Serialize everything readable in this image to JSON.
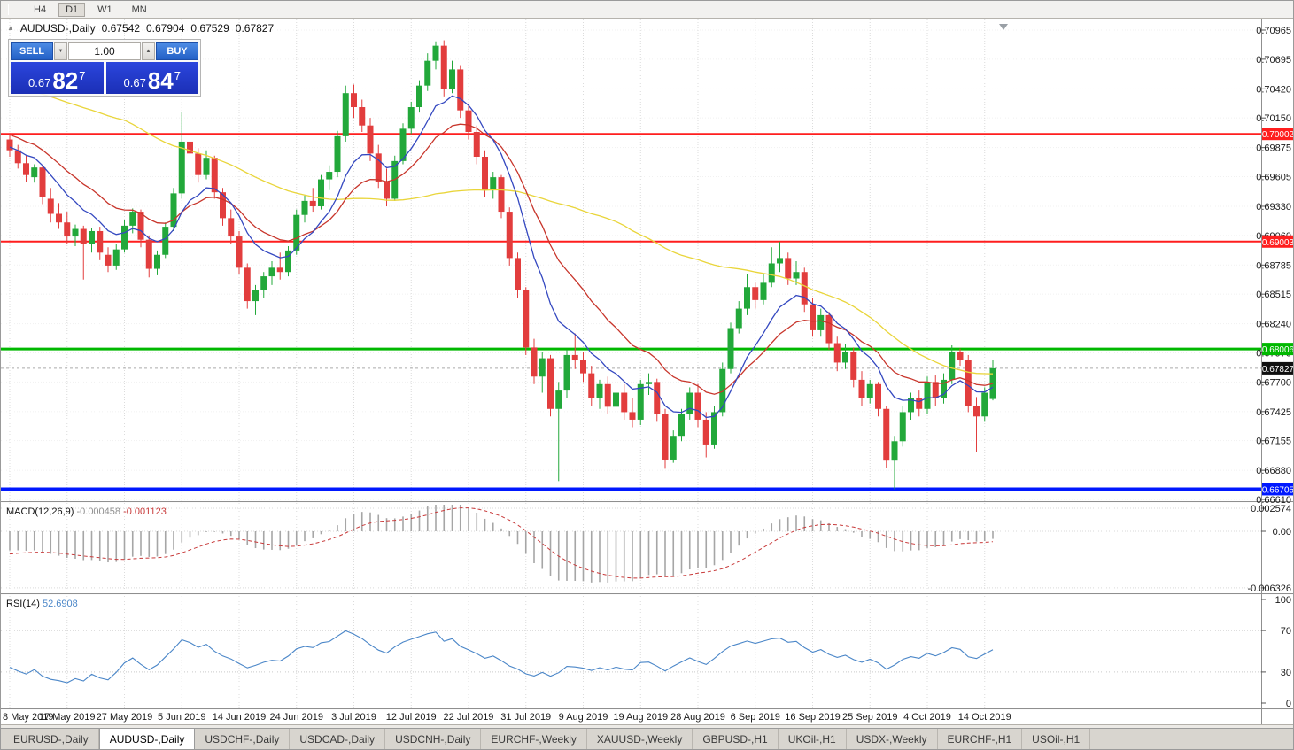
{
  "toolbar": {
    "timeframes": [
      "H4",
      "D1",
      "W1",
      "MN"
    ],
    "active": "D1"
  },
  "icons": {
    "collapse_panel": "▲",
    "spinner_up": "▲",
    "spinner_down": "▼"
  },
  "chart": {
    "symbol_label": "AUDUSD-,Daily",
    "ohlc": {
      "open": "0.67542",
      "high": "0.67904",
      "low": "0.67529",
      "close": "0.67827"
    },
    "one_click": {
      "sell_label": "SELL",
      "buy_label": "BUY",
      "volume": "1.00",
      "sell_price": {
        "prefix": "0.67",
        "big": "82",
        "sup": "7"
      },
      "buy_price": {
        "prefix": "0.67",
        "big": "84",
        "sup": "7"
      }
    },
    "price_axis": [
      "0.70965",
      "0.70695",
      "0.70420",
      "0.70150",
      "0.69875",
      "0.69605",
      "0.69330",
      "0.69060",
      "0.68785",
      "0.68515",
      "0.68240",
      "0.67970",
      "0.67700",
      "0.67425",
      "0.67155",
      "0.66880",
      "0.66610"
    ],
    "levels": [
      {
        "label": "0.70002",
        "value": 0.70002,
        "color": "#ff1e1e",
        "width": 2
      },
      {
        "label": "0.69003",
        "value": 0.69003,
        "color": "#ff1e1e",
        "width": 2
      },
      {
        "label": "0.68006",
        "value": 0.68006,
        "color": "#00b800",
        "width": 3
      },
      {
        "label": "0.66705",
        "value": 0.66705,
        "color": "#0018ff",
        "width": 4
      }
    ],
    "current_price": {
      "label": "0.67827",
      "value": 0.67827
    },
    "date_axis": [
      "8 May 2019",
      "17 May 2019",
      "27 May 2019",
      "5 Jun 2019",
      "14 Jun 2019",
      "24 Jun 2019",
      "3 Jul 2019",
      "12 Jul 2019",
      "22 Jul 2019",
      "31 Jul 2019",
      "9 Aug 2019",
      "19 Aug 2019",
      "28 Aug 2019",
      "6 Sep 2019",
      "16 Sep 2019",
      "25 Sep 2019",
      "4 Oct 2019",
      "14 Oct 2019"
    ]
  },
  "macd": {
    "label": "MACD(12,26,9)",
    "value_main": "-0.000458",
    "value_signal": "-0.001123",
    "axis": [
      "0.002574",
      "0.00",
      "-0.006326"
    ],
    "colors": {
      "histogram": "#a6a6a6",
      "signal": "#c83a3a"
    }
  },
  "rsi": {
    "label": "RSI(14)",
    "value": "52.6908",
    "axis": [
      "100",
      "70",
      "30",
      "0"
    ],
    "levels": [
      70,
      30
    ],
    "color": "#4a86c8"
  },
  "tabs": [
    {
      "label": "EURUSD-,Daily",
      "active": false
    },
    {
      "label": "AUDUSD-,Daily",
      "active": true
    },
    {
      "label": "USDCHF-,Daily",
      "active": false
    },
    {
      "label": "USDCAD-,Daily",
      "active": false
    },
    {
      "label": "USDCNH-,Daily",
      "active": false
    },
    {
      "label": "EURCHF-,Weekly",
      "active": false
    },
    {
      "label": "XAUUSD-,Weekly",
      "active": false
    },
    {
      "label": "GBPUSD-,H1",
      "active": false
    },
    {
      "label": "UKOil-,H1",
      "active": false
    },
    {
      "label": "USDX-,Weekly",
      "active": false
    },
    {
      "label": "EURCHF-,H1",
      "active": false
    },
    {
      "label": "USOil-,H1",
      "active": false
    }
  ],
  "colors": {
    "bull": "#22a83a",
    "bear": "#e23d3d",
    "grid": "#dcdcdc",
    "badge_current": "#101010"
  },
  "chart_data": {
    "type": "candlestick",
    "symbol": "AUDUSD",
    "timeframe": "Daily",
    "price_range": {
      "top": 0.70965,
      "bottom": 0.6661
    },
    "date_label_indices": [
      0,
      7,
      14,
      21,
      28,
      35,
      42,
      49,
      56,
      63,
      70,
      77,
      84,
      91,
      98,
      105,
      112,
      119
    ],
    "warmup_closes": [
      0.7135,
      0.714,
      0.7128,
      0.712,
      0.7125,
      0.7112,
      0.7105,
      0.711,
      0.7098,
      0.709,
      0.7095,
      0.7082,
      0.7075,
      0.708,
      0.7068,
      0.706,
      0.7065,
      0.7052,
      0.7045,
      0.705,
      0.7038,
      0.703,
      0.7035,
      0.7022,
      0.7015,
      0.702,
      0.7008,
      0.7,
      0.7005,
      0.6992,
      0.6985,
      0.699,
      0.6978,
      0.6982,
      0.6972,
      0.6975,
      0.6985,
      0.698,
      0.6992,
      0.6995
    ],
    "candles": [
      [
        0.6995,
        0.7001,
        0.6979,
        0.6985
      ],
      [
        0.6985,
        0.699,
        0.6968,
        0.6973
      ],
      [
        0.6973,
        0.698,
        0.6956,
        0.6962
      ],
      [
        0.696,
        0.6972,
        0.6955,
        0.6969
      ],
      [
        0.6969,
        0.6971,
        0.6935,
        0.6942
      ],
      [
        0.694,
        0.695,
        0.6918,
        0.6926
      ],
      [
        0.6926,
        0.6936,
        0.6912,
        0.6918
      ],
      [
        0.6918,
        0.6928,
        0.6898,
        0.6905
      ],
      [
        0.6905,
        0.6916,
        0.6896,
        0.6912
      ],
      [
        0.6912,
        0.6915,
        0.6865,
        0.6898
      ],
      [
        0.6898,
        0.6913,
        0.689,
        0.691
      ],
      [
        0.691,
        0.6914,
        0.6883,
        0.689
      ],
      [
        0.6888,
        0.6895,
        0.6872,
        0.6878
      ],
      [
        0.6878,
        0.6898,
        0.6874,
        0.6893
      ],
      [
        0.6893,
        0.692,
        0.689,
        0.6915
      ],
      [
        0.6915,
        0.6931,
        0.6908,
        0.6928
      ],
      [
        0.6928,
        0.693,
        0.6895,
        0.6902
      ],
      [
        0.6902,
        0.6906,
        0.6867,
        0.6875
      ],
      [
        0.6875,
        0.6892,
        0.6869,
        0.6888
      ],
      [
        0.6888,
        0.6918,
        0.6885,
        0.6914
      ],
      [
        0.6914,
        0.695,
        0.691,
        0.6945
      ],
      [
        0.6945,
        0.702,
        0.694,
        0.6993
      ],
      [
        0.6993,
        0.7,
        0.6975,
        0.6982
      ],
      [
        0.6982,
        0.6987,
        0.6955,
        0.6962
      ],
      [
        0.6962,
        0.6985,
        0.6958,
        0.6978
      ],
      [
        0.6978,
        0.698,
        0.694,
        0.6946
      ],
      [
        0.6946,
        0.695,
        0.6915,
        0.6922
      ],
      [
        0.6922,
        0.693,
        0.6898,
        0.6905
      ],
      [
        0.6905,
        0.691,
        0.687,
        0.6876
      ],
      [
        0.6876,
        0.688,
        0.6838,
        0.6845
      ],
      [
        0.6845,
        0.686,
        0.6832,
        0.6855
      ],
      [
        0.6855,
        0.6872,
        0.6848,
        0.6868
      ],
      [
        0.6868,
        0.6882,
        0.686,
        0.6876
      ],
      [
        0.6876,
        0.689,
        0.6865,
        0.6872
      ],
      [
        0.6872,
        0.6896,
        0.6868,
        0.6892
      ],
      [
        0.6892,
        0.693,
        0.6888,
        0.6925
      ],
      [
        0.6925,
        0.6943,
        0.6918,
        0.6938
      ],
      [
        0.6938,
        0.695,
        0.6928,
        0.6933
      ],
      [
        0.6933,
        0.6962,
        0.693,
        0.6958
      ],
      [
        0.6958,
        0.6971,
        0.6948,
        0.6965
      ],
      [
        0.6965,
        0.7003,
        0.696,
        0.6998
      ],
      [
        0.6998,
        0.7045,
        0.6993,
        0.7038
      ],
      [
        0.7038,
        0.7046,
        0.7015,
        0.7025
      ],
      [
        0.7025,
        0.7032,
        0.7002,
        0.7008
      ],
      [
        0.7008,
        0.7015,
        0.6975,
        0.6982
      ],
      [
        0.6982,
        0.699,
        0.695,
        0.6956
      ],
      [
        0.6956,
        0.6968,
        0.6933,
        0.694
      ],
      [
        0.694,
        0.698,
        0.6938,
        0.6975
      ],
      [
        0.6975,
        0.701,
        0.6972,
        0.7005
      ],
      [
        0.7005,
        0.703,
        0.7,
        0.7025
      ],
      [
        0.7025,
        0.705,
        0.702,
        0.7045
      ],
      [
        0.7045,
        0.7075,
        0.704,
        0.7068
      ],
      [
        0.7068,
        0.7086,
        0.706,
        0.7082
      ],
      [
        0.7082,
        0.7087,
        0.7035,
        0.7042
      ],
      [
        0.7042,
        0.7068,
        0.7038,
        0.706
      ],
      [
        0.706,
        0.7064,
        0.7015,
        0.7022
      ],
      [
        0.7022,
        0.7028,
        0.6995,
        0.7002
      ],
      [
        0.7002,
        0.7008,
        0.6972,
        0.6979
      ],
      [
        0.6979,
        0.6985,
        0.6942,
        0.6948
      ],
      [
        0.6948,
        0.6965,
        0.694,
        0.696
      ],
      [
        0.696,
        0.6962,
        0.6922,
        0.6928
      ],
      [
        0.6928,
        0.6932,
        0.6878,
        0.6885
      ],
      [
        0.6885,
        0.689,
        0.6848,
        0.6855
      ],
      [
        0.6855,
        0.6858,
        0.6795,
        0.6802
      ],
      [
        0.6802,
        0.681,
        0.6768,
        0.6775
      ],
      [
        0.6775,
        0.6798,
        0.676,
        0.6792
      ],
      [
        0.6792,
        0.6795,
        0.6738,
        0.6745
      ],
      [
        0.6745,
        0.677,
        0.6678,
        0.6762
      ],
      [
        0.6762,
        0.68,
        0.6755,
        0.6795
      ],
      [
        0.6795,
        0.6815,
        0.6782,
        0.679
      ],
      [
        0.679,
        0.6798,
        0.677,
        0.6778
      ],
      [
        0.6778,
        0.6785,
        0.6748,
        0.6755
      ],
      [
        0.6755,
        0.6772,
        0.6745,
        0.6768
      ],
      [
        0.6768,
        0.6775,
        0.674,
        0.6747
      ],
      [
        0.6747,
        0.6765,
        0.6738,
        0.676
      ],
      [
        0.676,
        0.6768,
        0.6735,
        0.6742
      ],
      [
        0.6742,
        0.6755,
        0.6728,
        0.6735
      ],
      [
        0.6735,
        0.6772,
        0.673,
        0.6768
      ],
      [
        0.6768,
        0.6778,
        0.6758,
        0.677
      ],
      [
        0.677,
        0.6773,
        0.6733,
        0.674
      ],
      [
        0.674,
        0.6745,
        0.66895,
        0.6698
      ],
      [
        0.6698,
        0.6725,
        0.6695,
        0.672
      ],
      [
        0.672,
        0.6745,
        0.6715,
        0.674
      ],
      [
        0.674,
        0.6765,
        0.6735,
        0.676
      ],
      [
        0.676,
        0.6768,
        0.6728,
        0.6735
      ],
      [
        0.6735,
        0.6742,
        0.67,
        0.6712
      ],
      [
        0.6712,
        0.6748,
        0.6708,
        0.6742
      ],
      [
        0.6742,
        0.6788,
        0.6738,
        0.6782
      ],
      [
        0.6782,
        0.6825,
        0.6778,
        0.682
      ],
      [
        0.682,
        0.6845,
        0.6815,
        0.6838
      ],
      [
        0.6838,
        0.687,
        0.6832,
        0.6858
      ],
      [
        0.6858,
        0.6862,
        0.6838,
        0.6846
      ],
      [
        0.6846,
        0.687,
        0.6842,
        0.6862
      ],
      [
        0.6862,
        0.6895,
        0.6858,
        0.688
      ],
      [
        0.688,
        0.69,
        0.6872,
        0.6885
      ],
      [
        0.6885,
        0.689,
        0.686,
        0.6866
      ],
      [
        0.6866,
        0.6882,
        0.686,
        0.6872
      ],
      [
        0.6872,
        0.6876,
        0.6835,
        0.6842
      ],
      [
        0.6842,
        0.6848,
        0.6812,
        0.6818
      ],
      [
        0.6818,
        0.6838,
        0.6812,
        0.6832
      ],
      [
        0.6832,
        0.6835,
        0.68,
        0.6806
      ],
      [
        0.6806,
        0.6812,
        0.678,
        0.6788
      ],
      [
        0.6788,
        0.6805,
        0.6782,
        0.6798
      ],
      [
        0.6798,
        0.6802,
        0.6765,
        0.6772
      ],
      [
        0.6772,
        0.678,
        0.6748,
        0.6755
      ],
      [
        0.6755,
        0.6772,
        0.675,
        0.6768
      ],
      [
        0.6768,
        0.677,
        0.6738,
        0.6745
      ],
      [
        0.6745,
        0.6748,
        0.669,
        0.6697
      ],
      [
        0.6697,
        0.672,
        0.66705,
        0.6715
      ],
      [
        0.6715,
        0.6748,
        0.671,
        0.6742
      ],
      [
        0.6742,
        0.676,
        0.6735,
        0.6755
      ],
      [
        0.6755,
        0.6762,
        0.6738,
        0.6745
      ],
      [
        0.6745,
        0.6775,
        0.674,
        0.677
      ],
      [
        0.677,
        0.6776,
        0.6748,
        0.6755
      ],
      [
        0.6755,
        0.6778,
        0.675,
        0.6772
      ],
      [
        0.6772,
        0.6804,
        0.6768,
        0.6798
      ],
      [
        0.6798,
        0.6801,
        0.6785,
        0.679
      ],
      [
        0.679,
        0.6795,
        0.6742,
        0.6748
      ],
      [
        0.6748,
        0.6756,
        0.6705,
        0.6738
      ],
      [
        0.6738,
        0.6765,
        0.6733,
        0.676
      ],
      [
        0.67542,
        0.67904,
        0.67529,
        0.67827
      ]
    ],
    "moving_averages": [
      {
        "name": "slow",
        "type": "sma",
        "period": 55,
        "color": "#e9d53a"
      },
      {
        "name": "medium",
        "type": "ema",
        "period": 18,
        "color": "#c8352b"
      },
      {
        "name": "fast",
        "type": "ema",
        "period": 9,
        "color": "#3448c0"
      }
    ],
    "indicators": {
      "macd": {
        "fast": 12,
        "slow": 26,
        "signal": 9
      },
      "rsi": {
        "period": 14
      }
    }
  }
}
